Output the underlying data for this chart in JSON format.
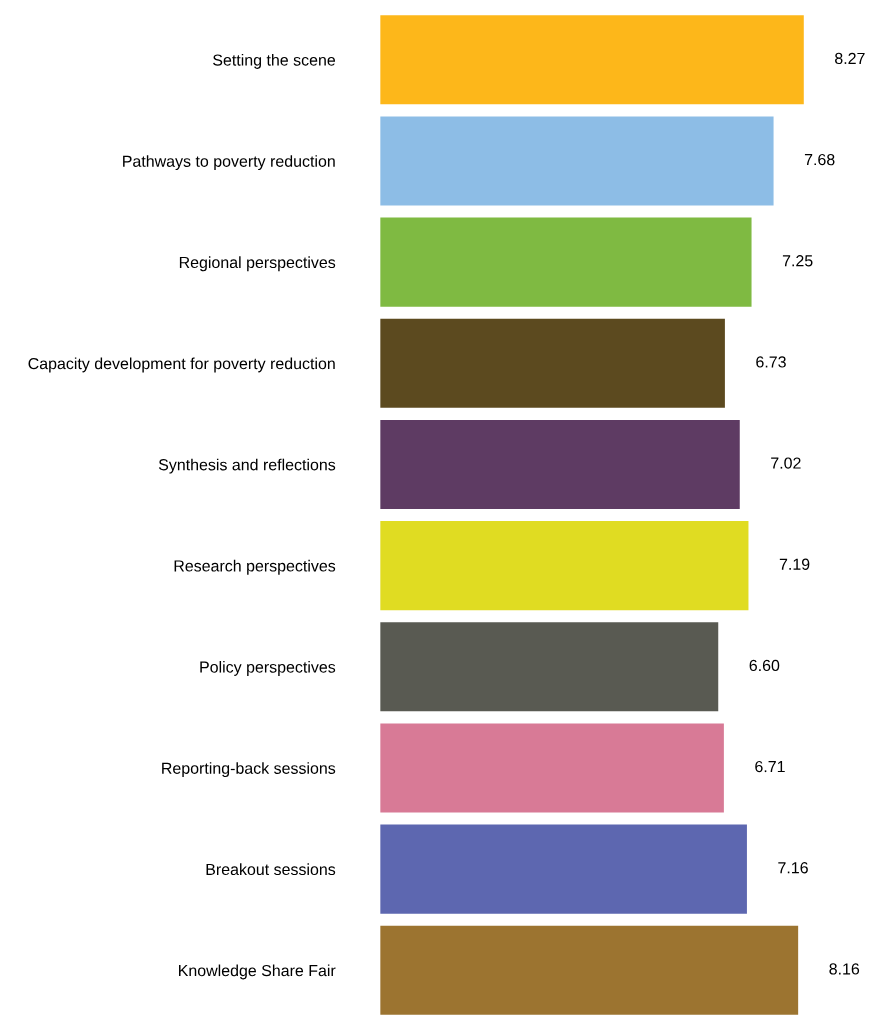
{
  "chart_data": {
    "type": "bar",
    "orientation": "horizontal",
    "value_labels": [
      "8.27",
      "7.68",
      "7.25",
      "6.73",
      "7.02",
      "7.19",
      "6.60",
      "6.71",
      "7.16",
      "8.16"
    ],
    "grid": false,
    "legend": false,
    "categories": [
      "Setting the scene",
      "Pathways to poverty reduction",
      "Regional perspectives",
      "Capacity development for poverty reduction",
      "Synthesis and reflections",
      "Research perspectives",
      "Policy perspectives",
      "Reporting-back sessions",
      "Breakout sessions",
      "Knowledge Share Fair"
    ],
    "values": [
      8.27,
      7.68,
      7.25,
      6.73,
      7.02,
      7.19,
      6.6,
      6.71,
      7.16,
      8.16
    ],
    "colors": [
      "#fdb71a",
      "#8dbde6",
      "#7fba42",
      "#5c4a1f",
      "#5e3b63",
      "#e0dc22",
      "#595a52",
      "#d87a96",
      "#5d67b0",
      "#9c7430"
    ]
  }
}
